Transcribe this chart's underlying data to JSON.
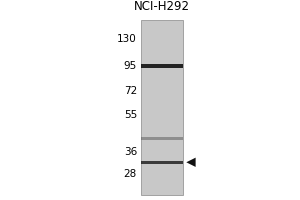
{
  "title": "NCI-H292",
  "mw_markers": [
    130,
    95,
    72,
    55,
    36,
    28
  ],
  "band1_mw": 95,
  "band2_mw": 42,
  "band3_mw": 32,
  "arrow_mw": 32,
  "outer_bg": "#ffffff",
  "gel_bg": "#c8c8c8",
  "lane_bg": "#b0b0b0",
  "band1_color": "#111111",
  "band1_alpha": 0.9,
  "band2_color": "#555555",
  "band2_alpha": 0.5,
  "band3_color": "#222222",
  "band3_alpha": 0.85,
  "text_color": "#000000",
  "title_fontsize": 8.5,
  "marker_fontsize": 7.5,
  "fig_width": 3.0,
  "fig_height": 2.0,
  "dpi": 100
}
